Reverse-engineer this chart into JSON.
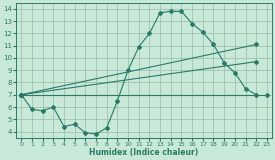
{
  "xlabel": "Humidex (Indice chaleur)",
  "bg_color": "#c8e8d8",
  "grid_color": "#99bbaa",
  "line_color": "#2a7a6a",
  "xlim": [
    -0.5,
    23.5
  ],
  "ylim": [
    3.5,
    14.5
  ],
  "xticks": [
    0,
    1,
    2,
    3,
    4,
    5,
    6,
    7,
    8,
    9,
    10,
    11,
    12,
    13,
    14,
    15,
    16,
    17,
    18,
    19,
    20,
    21,
    22,
    23
  ],
  "yticks": [
    4,
    5,
    6,
    7,
    8,
    9,
    10,
    11,
    12,
    13,
    14
  ],
  "line1_x": [
    0,
    1,
    2,
    3,
    4,
    5,
    6,
    7,
    8,
    9,
    10,
    11,
    12,
    13,
    14,
    15,
    16,
    17,
    18,
    19,
    20,
    21,
    22
  ],
  "line1_y": [
    7.0,
    5.8,
    5.7,
    6.0,
    4.4,
    4.6,
    3.9,
    3.8,
    4.3,
    6.5,
    9.0,
    10.9,
    12.0,
    13.7,
    13.8,
    13.8,
    12.8,
    12.1,
    11.1,
    9.6,
    8.8,
    7.5,
    7.0
  ],
  "line2_x": [
    0,
    22
  ],
  "line2_y": [
    7.0,
    11.1
  ],
  "line3_x": [
    0,
    22
  ],
  "line3_y": [
    7.0,
    9.7
  ],
  "line4_x": [
    0,
    23
  ],
  "line4_y": [
    7.0,
    7.0
  ]
}
